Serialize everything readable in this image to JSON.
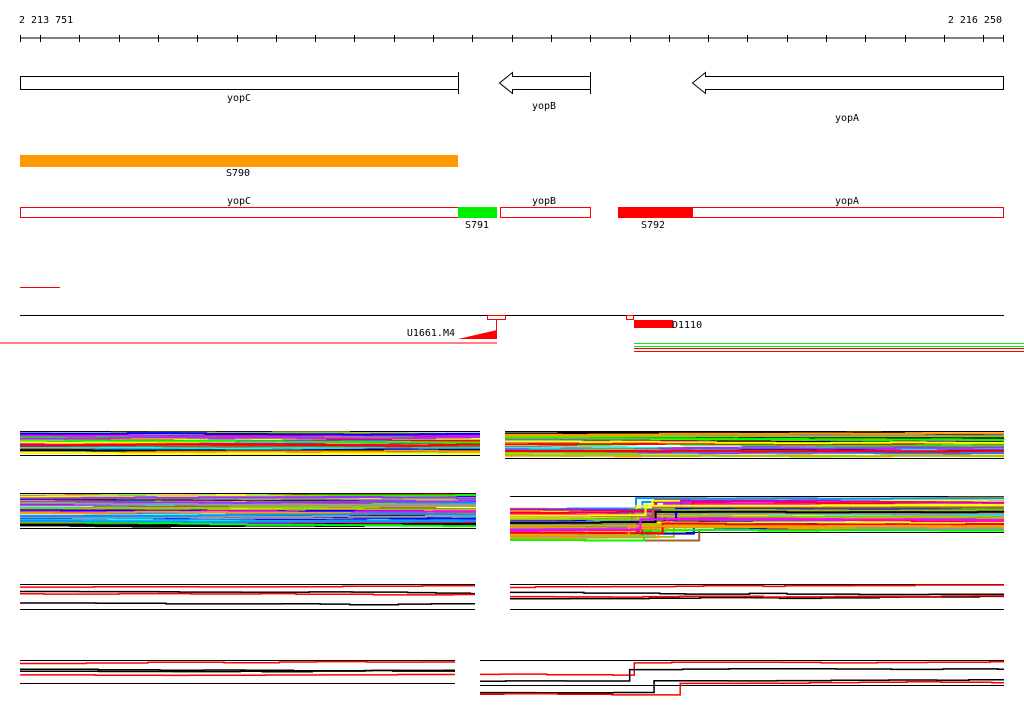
{
  "ruler": {
    "start_label": "2 213 751",
    "end_label": "2 216 250"
  },
  "genes": [
    {
      "name": "yopC",
      "strand": "+"
    },
    {
      "name": "yopB",
      "strand": "-"
    },
    {
      "name": "yopA",
      "strand": "-"
    }
  ],
  "segment_track": {
    "label": "S790",
    "color": "#ff9900"
  },
  "annotated_track": {
    "gene_labels": [
      "yopC",
      "yopB",
      "yopA"
    ],
    "segments": [
      {
        "label": "S791",
        "color": "#00ee00"
      },
      {
        "label": "S792",
        "color": "#ff0000"
      }
    ],
    "outline_color": "#ff0000"
  },
  "features": [
    {
      "label": "U1661.M4",
      "color": "#ff0000"
    },
    {
      "label": "D1110",
      "color": "#ff0000"
    }
  ],
  "palette": [
    "#ff0000",
    "#00ff00",
    "#0000ff",
    "#ff00ff",
    "#00ffff",
    "#ffff00",
    "#ff9900",
    "#999999",
    "#000000",
    "#9933ff",
    "#0099ff",
    "#99cc00",
    "#996633",
    "#cc00cc"
  ]
}
